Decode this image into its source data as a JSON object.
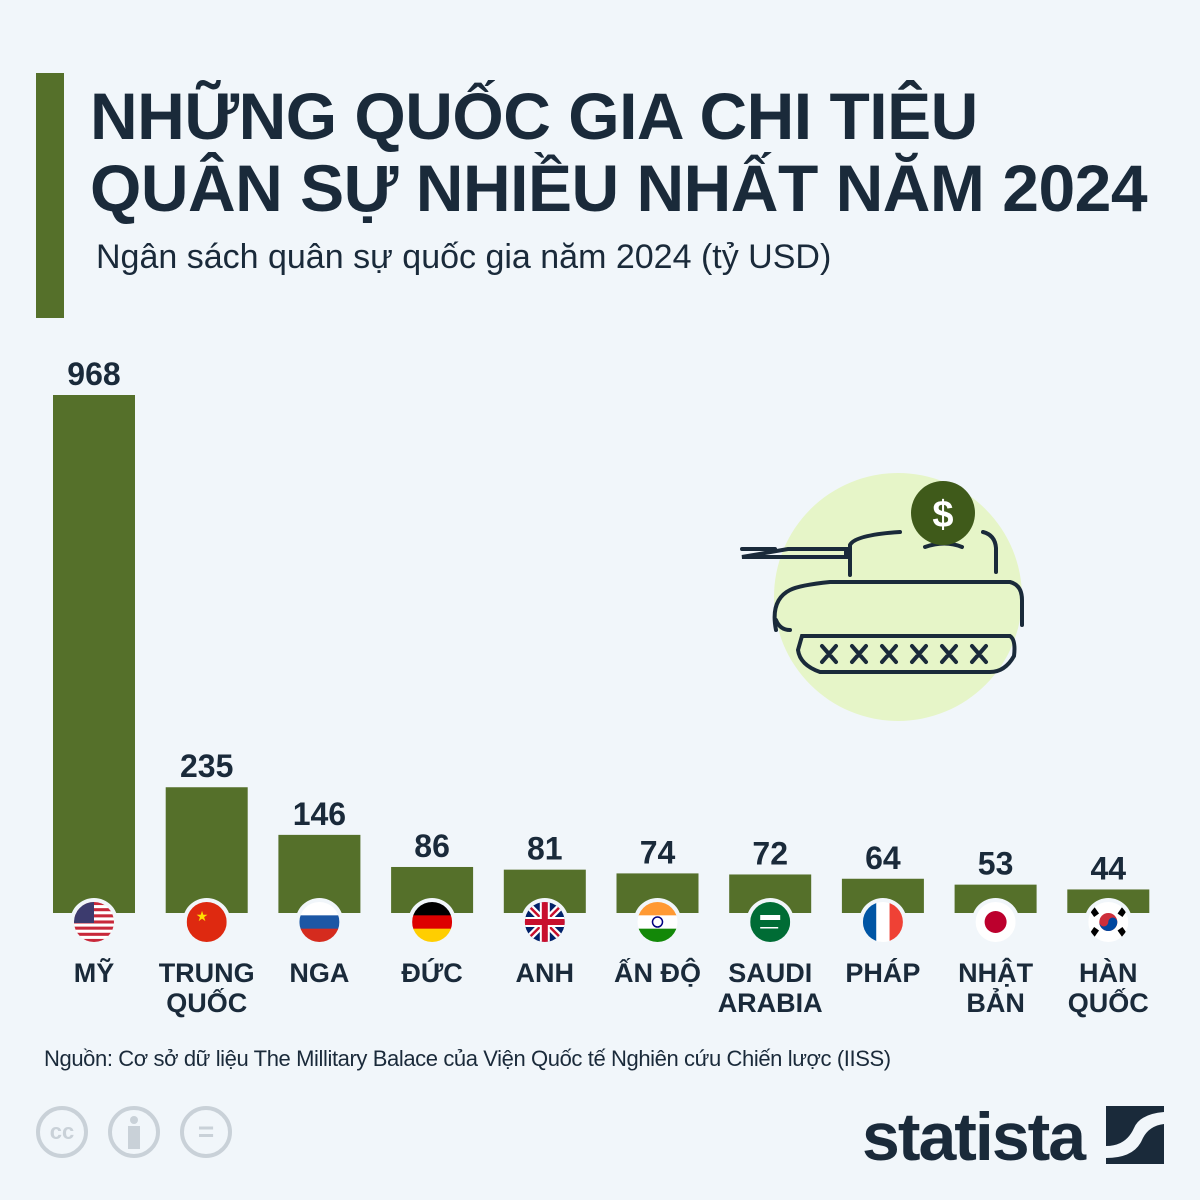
{
  "header": {
    "title_line1": "NHỮNG QUỐC GIA CHI TIÊU",
    "title_line2": "QUÂN SỰ NHIỀU NHẤT NĂM 2024",
    "subtitle": "Ngân sách quân sự quốc gia năm 2024 (tỷ USD)"
  },
  "chart_data": {
    "type": "bar",
    "title": "NHỮNG QUỐC GIA CHI TIÊU QUÂN SỰ NHIỀU NHẤT NĂM 2024",
    "subtitle": "Ngân sách quân sự quốc gia năm 2024 (tỷ USD)",
    "categories": [
      [
        "MỸ"
      ],
      [
        "TRUNG",
        "QUỐC"
      ],
      [
        "NGA"
      ],
      [
        "ĐỨC"
      ],
      [
        "ANH"
      ],
      [
        "ẤN ĐỘ"
      ],
      [
        "SAUDI",
        "ARABIA"
      ],
      [
        "PHÁP"
      ],
      [
        "NHẬT",
        "BẢN"
      ],
      [
        "HÀN",
        "QUỐC"
      ]
    ],
    "flags": [
      "us",
      "cn",
      "ru",
      "de",
      "gb",
      "in",
      "sa",
      "fr",
      "jp",
      "kr"
    ],
    "values": [
      968,
      235,
      146,
      86,
      81,
      74,
      72,
      64,
      53,
      44
    ],
    "ylim": [
      0,
      968
    ],
    "grid": false,
    "bar_color": "#55702a"
  },
  "illustration": {
    "icon": "tank-with-dollar-coin-icon",
    "circle_color": "#e6f5c8",
    "coin_color": "#3f5a1a",
    "coin_symbol": "$"
  },
  "footer": {
    "source": "Nguồn: Cơ sở dữ liệu The Millitary Balace của Viện Quốc tế Nghiên cứu Chiến lược (IISS)",
    "license_icons": [
      "cc-icon",
      "attribution-icon",
      "no-derivatives-icon"
    ],
    "cc_text": "cc",
    "nd_text": "=",
    "brand": "statista"
  },
  "colors": {
    "background": "#f1f6fa",
    "title": "#1a2a3a",
    "accent": "#55702a"
  }
}
